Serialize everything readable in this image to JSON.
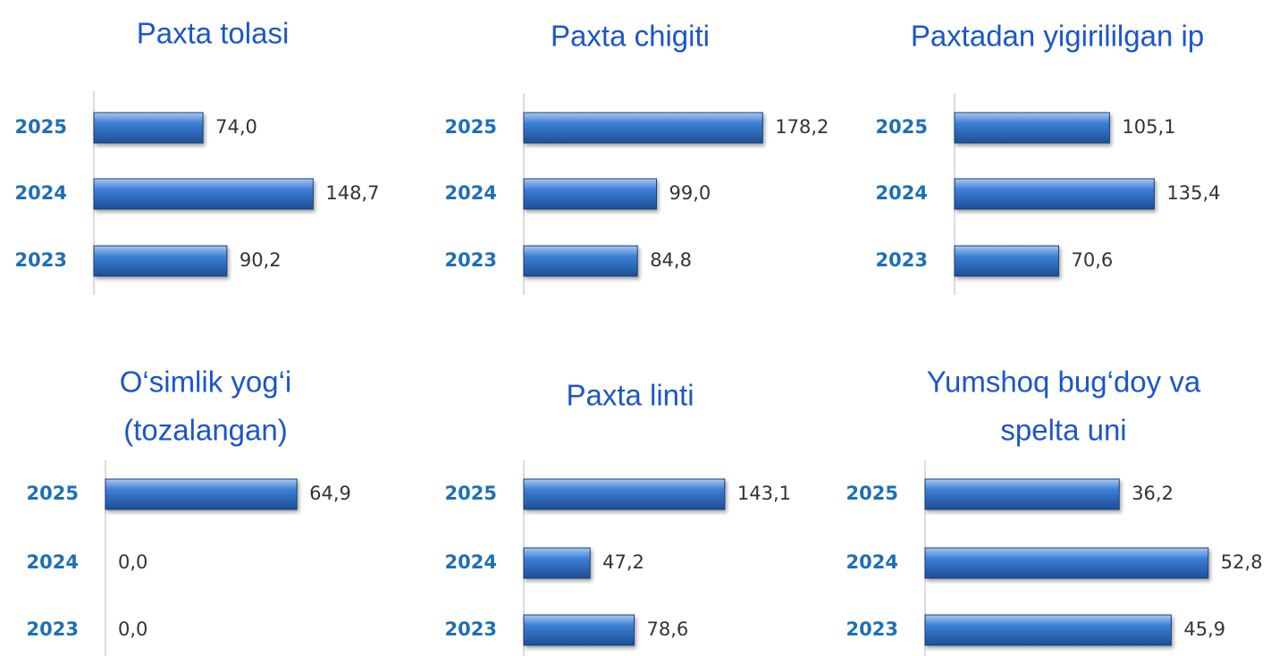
{
  "chart_data": [
    {
      "type": "bar",
      "title": "Paxta tolasi",
      "categories": [
        "2025",
        "2024",
        "2023"
      ],
      "values": [
        74.0,
        148.7,
        90.2
      ],
      "value_labels": [
        "74,0",
        "148,7",
        "90,2"
      ],
      "xlim": [
        0,
        200
      ],
      "color": "#2e6fc4"
    },
    {
      "type": "bar",
      "title": "Paxta chigiti",
      "categories": [
        "2025",
        "2024",
        "2023"
      ],
      "values": [
        178.2,
        99.0,
        84.8
      ],
      "value_labels": [
        "178,2",
        "99,0",
        "84,8"
      ],
      "xlim": [
        0,
        220
      ],
      "color": "#2e6fc4"
    },
    {
      "type": "bar",
      "title": "Paxtadan yigirililgan ip",
      "categories": [
        "2025",
        "2024",
        "2023"
      ],
      "values": [
        105.1,
        135.4,
        70.6
      ],
      "value_labels": [
        "105,1",
        "135,4",
        "70,6"
      ],
      "xlim": [
        0,
        200
      ],
      "color": "#2e6fc4"
    },
    {
      "type": "bar",
      "title": [
        "O‘simlik yog‘i",
        "(tozalangan)"
      ],
      "categories": [
        "2025",
        "2024",
        "2023"
      ],
      "values": [
        64.9,
        0.0,
        0.0
      ],
      "value_labels": [
        "64,9",
        "0,0",
        "0,0"
      ],
      "xlim": [
        0,
        100
      ],
      "color": "#2e6fc4"
    },
    {
      "type": "bar",
      "title": "Paxta linti",
      "categories": [
        "2025",
        "2024",
        "2023"
      ],
      "values": [
        143.1,
        47.2,
        78.6
      ],
      "value_labels": [
        "143,1",
        "47,2",
        "78,6"
      ],
      "xlim": [
        0,
        210
      ],
      "color": "#2e6fc4"
    },
    {
      "type": "bar",
      "title": [
        "Yumshoq bug‘doy va",
        "spelta uni"
      ],
      "categories": [
        "2025",
        "2024",
        "2023"
      ],
      "values": [
        36.2,
        52.8,
        45.9
      ],
      "value_labels": [
        "36,2",
        "52,8",
        "45,9"
      ],
      "xlim": [
        0,
        55
      ],
      "color": "#2e6fc4"
    }
  ]
}
